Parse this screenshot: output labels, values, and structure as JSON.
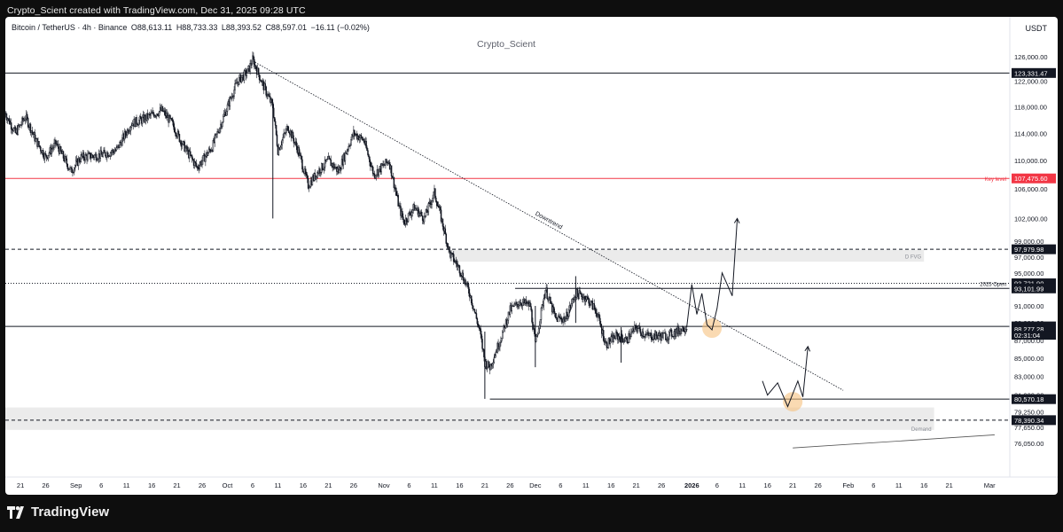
{
  "caption": "Crypto_Scient created with TradingView.com, Dec 31, 2025 09:28 UTC",
  "header": {
    "symbol": "Bitcoin / TetherUS · 4h · Binance",
    "open": "O88,613.11",
    "high": "H88,733.33",
    "low": "L88,393.52",
    "close": "C88,597.01",
    "change": "−16.11 (−0.02%)",
    "currency": "USDT"
  },
  "watermark": "Crypto_Scient",
  "brand": {
    "logo_text": "TradingView",
    "logo_icon": "tradingview-logo-icon"
  },
  "colors": {
    "background": "#0e0e0e",
    "panel": "#ffffff",
    "candle": "#131722",
    "key_level": "#f23645",
    "zone": "#ebebeb",
    "highlight": "#f7c27e"
  },
  "chart_data": {
    "type": "candlestick",
    "symbol": "BTC/USDT",
    "interval": "4h",
    "ylim": [
      74400,
      127000
    ],
    "y_scale": "log",
    "x_range": [
      "2025-08-18",
      "2026-03-05"
    ],
    "grid": false,
    "x_ticks": [
      {
        "date": "2025-08-21",
        "label": "21"
      },
      {
        "date": "2025-08-26",
        "label": "26"
      },
      {
        "date": "2025-09-01",
        "label": "Sep"
      },
      {
        "date": "2025-09-06",
        "label": "6"
      },
      {
        "date": "2025-09-11",
        "label": "11"
      },
      {
        "date": "2025-09-16",
        "label": "16"
      },
      {
        "date": "2025-09-21",
        "label": "21"
      },
      {
        "date": "2025-09-26",
        "label": "26"
      },
      {
        "date": "2025-10-01",
        "label": "Oct"
      },
      {
        "date": "2025-10-06",
        "label": "6"
      },
      {
        "date": "2025-10-11",
        "label": "11"
      },
      {
        "date": "2025-10-16",
        "label": "16"
      },
      {
        "date": "2025-10-21",
        "label": "21"
      },
      {
        "date": "2025-10-26",
        "label": "26"
      },
      {
        "date": "2025-11-01",
        "label": "Nov"
      },
      {
        "date": "2025-11-06",
        "label": "6"
      },
      {
        "date": "2025-11-11",
        "label": "11"
      },
      {
        "date": "2025-11-16",
        "label": "16"
      },
      {
        "date": "2025-11-21",
        "label": "21"
      },
      {
        "date": "2025-11-26",
        "label": "26"
      },
      {
        "date": "2025-12-01",
        "label": "Dec"
      },
      {
        "date": "2025-12-06",
        "label": "6"
      },
      {
        "date": "2025-12-11",
        "label": "11"
      },
      {
        "date": "2025-12-16",
        "label": "16"
      },
      {
        "date": "2025-12-21",
        "label": "21"
      },
      {
        "date": "2025-12-26",
        "label": "26"
      },
      {
        "date": "2026-01-01",
        "label": "2026"
      },
      {
        "date": "2026-01-06",
        "label": "6"
      },
      {
        "date": "2026-01-11",
        "label": "11"
      },
      {
        "date": "2026-01-16",
        "label": "16"
      },
      {
        "date": "2026-01-21",
        "label": "21"
      },
      {
        "date": "2026-01-26",
        "label": "26"
      },
      {
        "date": "2026-02-01",
        "label": "Feb"
      },
      {
        "date": "2026-02-06",
        "label": "6"
      },
      {
        "date": "2026-02-11",
        "label": "11"
      },
      {
        "date": "2026-02-16",
        "label": "16"
      },
      {
        "date": "2026-02-21",
        "label": "21"
      },
      {
        "date": "2026-03-01",
        "label": "Mar"
      }
    ],
    "y_ticks": [
      126000,
      122000,
      118000,
      114000,
      110000,
      106000,
      102000,
      99000,
      97000,
      95000,
      93000,
      91000,
      89000,
      87000,
      85000,
      83000,
      81000,
      79250,
      77650,
      76050
    ],
    "y_tick_labels": [
      "126,000.00",
      "122,000.00",
      "118,000.00",
      "114,000.00",
      "110,000.00",
      "106,000.00",
      "102,000.00",
      "99,000.00",
      "97,000.00",
      "95,000.00",
      "93,000.00",
      "91,000.00",
      "89,000.00",
      "87,000.00",
      "85,000.00",
      "83,000.00",
      "81,000.00",
      "79,250.00",
      "77,650.00",
      "76,050.00"
    ],
    "price_path": [
      [
        "2025-08-18",
        117000
      ],
      [
        "2025-08-20",
        114000
      ],
      [
        "2025-08-22",
        116500
      ],
      [
        "2025-08-24",
        113000
      ],
      [
        "2025-08-26",
        110500
      ],
      [
        "2025-08-28",
        112500
      ],
      [
        "2025-08-31",
        108500
      ],
      [
        "2025-09-02",
        110500
      ],
      [
        "2025-09-06",
        110800
      ],
      [
        "2025-09-09",
        111500
      ],
      [
        "2025-09-12",
        115500
      ],
      [
        "2025-09-14",
        116000
      ],
      [
        "2025-09-18",
        117500
      ],
      [
        "2025-09-20",
        115500
      ],
      [
        "2025-09-22",
        112500
      ],
      [
        "2025-09-25",
        109000
      ],
      [
        "2025-09-28",
        112000
      ],
      [
        "2025-10-01",
        118000
      ],
      [
        "2025-10-03",
        122000
      ],
      [
        "2025-10-05",
        123500
      ],
      [
        "2025-10-06",
        125500
      ],
      [
        "2025-10-08",
        121500
      ],
      [
        "2025-10-10",
        118000
      ],
      [
        "2025-10-11",
        111500
      ],
      [
        "2025-10-13",
        115000
      ],
      [
        "2025-10-15",
        111500
      ],
      [
        "2025-10-17",
        106500
      ],
      [
        "2025-10-19",
        108500
      ],
      [
        "2025-10-21",
        110000
      ],
      [
        "2025-10-23",
        108500
      ],
      [
        "2025-10-26",
        114000
      ],
      [
        "2025-10-28",
        113000
      ],
      [
        "2025-10-30",
        108000
      ],
      [
        "2025-11-02",
        110000
      ],
      [
        "2025-11-04",
        103500
      ],
      [
        "2025-11-05",
        101500
      ],
      [
        "2025-11-07",
        103500
      ],
      [
        "2025-11-09",
        102000
      ],
      [
        "2025-11-11",
        105500
      ],
      [
        "2025-11-12",
        103000
      ],
      [
        "2025-11-14",
        97500
      ],
      [
        "2025-11-16",
        95500
      ],
      [
        "2025-11-18",
        92500
      ],
      [
        "2025-11-20",
        88000
      ],
      [
        "2025-11-21",
        84500
      ],
      [
        "2025-11-22",
        84000
      ],
      [
        "2025-11-24",
        87000
      ],
      [
        "2025-11-26",
        90500
      ],
      [
        "2025-11-28",
        91500
      ],
      [
        "2025-11-30",
        91000
      ],
      [
        "2025-12-01",
        86500
      ],
      [
        "2025-12-03",
        93000
      ],
      [
        "2025-12-05",
        89500
      ],
      [
        "2025-12-07",
        89500
      ],
      [
        "2025-12-09",
        92500
      ],
      [
        "2025-12-11",
        92000
      ],
      [
        "2025-12-13",
        90500
      ],
      [
        "2025-12-15",
        86500
      ],
      [
        "2025-12-17",
        87500
      ],
      [
        "2025-12-19",
        87000
      ],
      [
        "2025-12-21",
        88500
      ],
      [
        "2025-12-23",
        87500
      ],
      [
        "2025-12-25",
        87500
      ],
      [
        "2025-12-27",
        87500
      ],
      [
        "2025-12-29",
        88000
      ],
      [
        "2025-12-31",
        88597
      ]
    ],
    "wicks": [
      {
        "date": "2025-10-10",
        "low": 102000,
        "high": 118000
      },
      {
        "date": "2025-11-21",
        "low": 80600,
        "high": 88000
      },
      {
        "date": "2025-12-01",
        "low": 84000,
        "high": 91000
      },
      {
        "date": "2025-12-09",
        "low": 89000,
        "high": 94600
      },
      {
        "date": "2025-12-18",
        "low": 84500,
        "high": 88500
      }
    ],
    "levels": [
      {
        "price": 123331.47,
        "label": "123,331.47",
        "style": "solid",
        "start": "2025-08-18"
      },
      {
        "price": 107475.6,
        "label": "107,475.60",
        "style": "solid",
        "color": "red",
        "start": "2025-08-18",
        "annotation": "Key level"
      },
      {
        "price": 97979.98,
        "label": "97,979.98",
        "style": "dashed",
        "start": "2025-08-18"
      },
      {
        "price": 93721.9,
        "label": "93,721.90",
        "style": "dotted",
        "start": "2025-08-18",
        "annotation": "2025 Open"
      },
      {
        "price": 93101.99,
        "label": "93,101.99",
        "style": "solid",
        "start": "2025-11-27"
      },
      {
        "price": 88597.01,
        "label": "88,597.01",
        "style": "solid",
        "start": "2025-08-18",
        "current": true
      },
      {
        "price": 80570.18,
        "label": "80,570.18",
        "style": "solid",
        "start": "2025-11-22"
      },
      {
        "price": 78390.34,
        "label": "78,390.34",
        "style": "dashed",
        "start": "2025-08-18"
      }
    ],
    "extra_price_labels": [
      {
        "price": 88277.28,
        "label": "88,277.28"
      }
    ],
    "countdown": "02:31:04",
    "zones": [
      {
        "name": "D FVG",
        "from": "2025-11-14",
        "to": "2026-02-16",
        "low": 96400,
        "high": 97900
      },
      {
        "name": "Demand",
        "from": "2025-08-18",
        "to": "2026-02-18",
        "low": 77400,
        "high": 79700
      }
    ],
    "trendline": {
      "label": "Downtrend",
      "from": [
        "2025-10-06",
        125300
      ],
      "to": [
        "2026-01-31",
        81500
      ]
    },
    "projections": [
      {
        "name": "bullish",
        "points": [
          [
            "2025-12-31",
            88500
          ],
          [
            "2026-01-01",
            93600
          ],
          [
            "2026-01-02",
            90000
          ],
          [
            "2026-01-03",
            92500
          ],
          [
            "2026-01-04",
            88800
          ],
          [
            "2026-01-05",
            88200
          ],
          [
            "2026-01-06",
            90700
          ],
          [
            "2026-01-07",
            95000
          ],
          [
            "2026-01-09",
            92200
          ],
          [
            "2026-01-10",
            102000
          ]
        ]
      },
      {
        "name": "bearish",
        "points": [
          [
            "2026-01-15",
            82500
          ],
          [
            "2026-01-16",
            81000
          ],
          [
            "2026-01-18",
            82300
          ],
          [
            "2026-01-20",
            79800
          ],
          [
            "2026-01-22",
            82500
          ],
          [
            "2026-01-23",
            80800
          ],
          [
            "2026-01-24",
            86300
          ]
        ]
      }
    ],
    "highlights": [
      {
        "date": "2026-01-05",
        "price": 88400
      },
      {
        "date": "2026-01-21",
        "price": 80300
      }
    ],
    "minor_line": {
      "from": [
        "2026-01-21",
        75600
      ],
      "to": [
        "2026-03-02",
        76900
      ]
    }
  }
}
